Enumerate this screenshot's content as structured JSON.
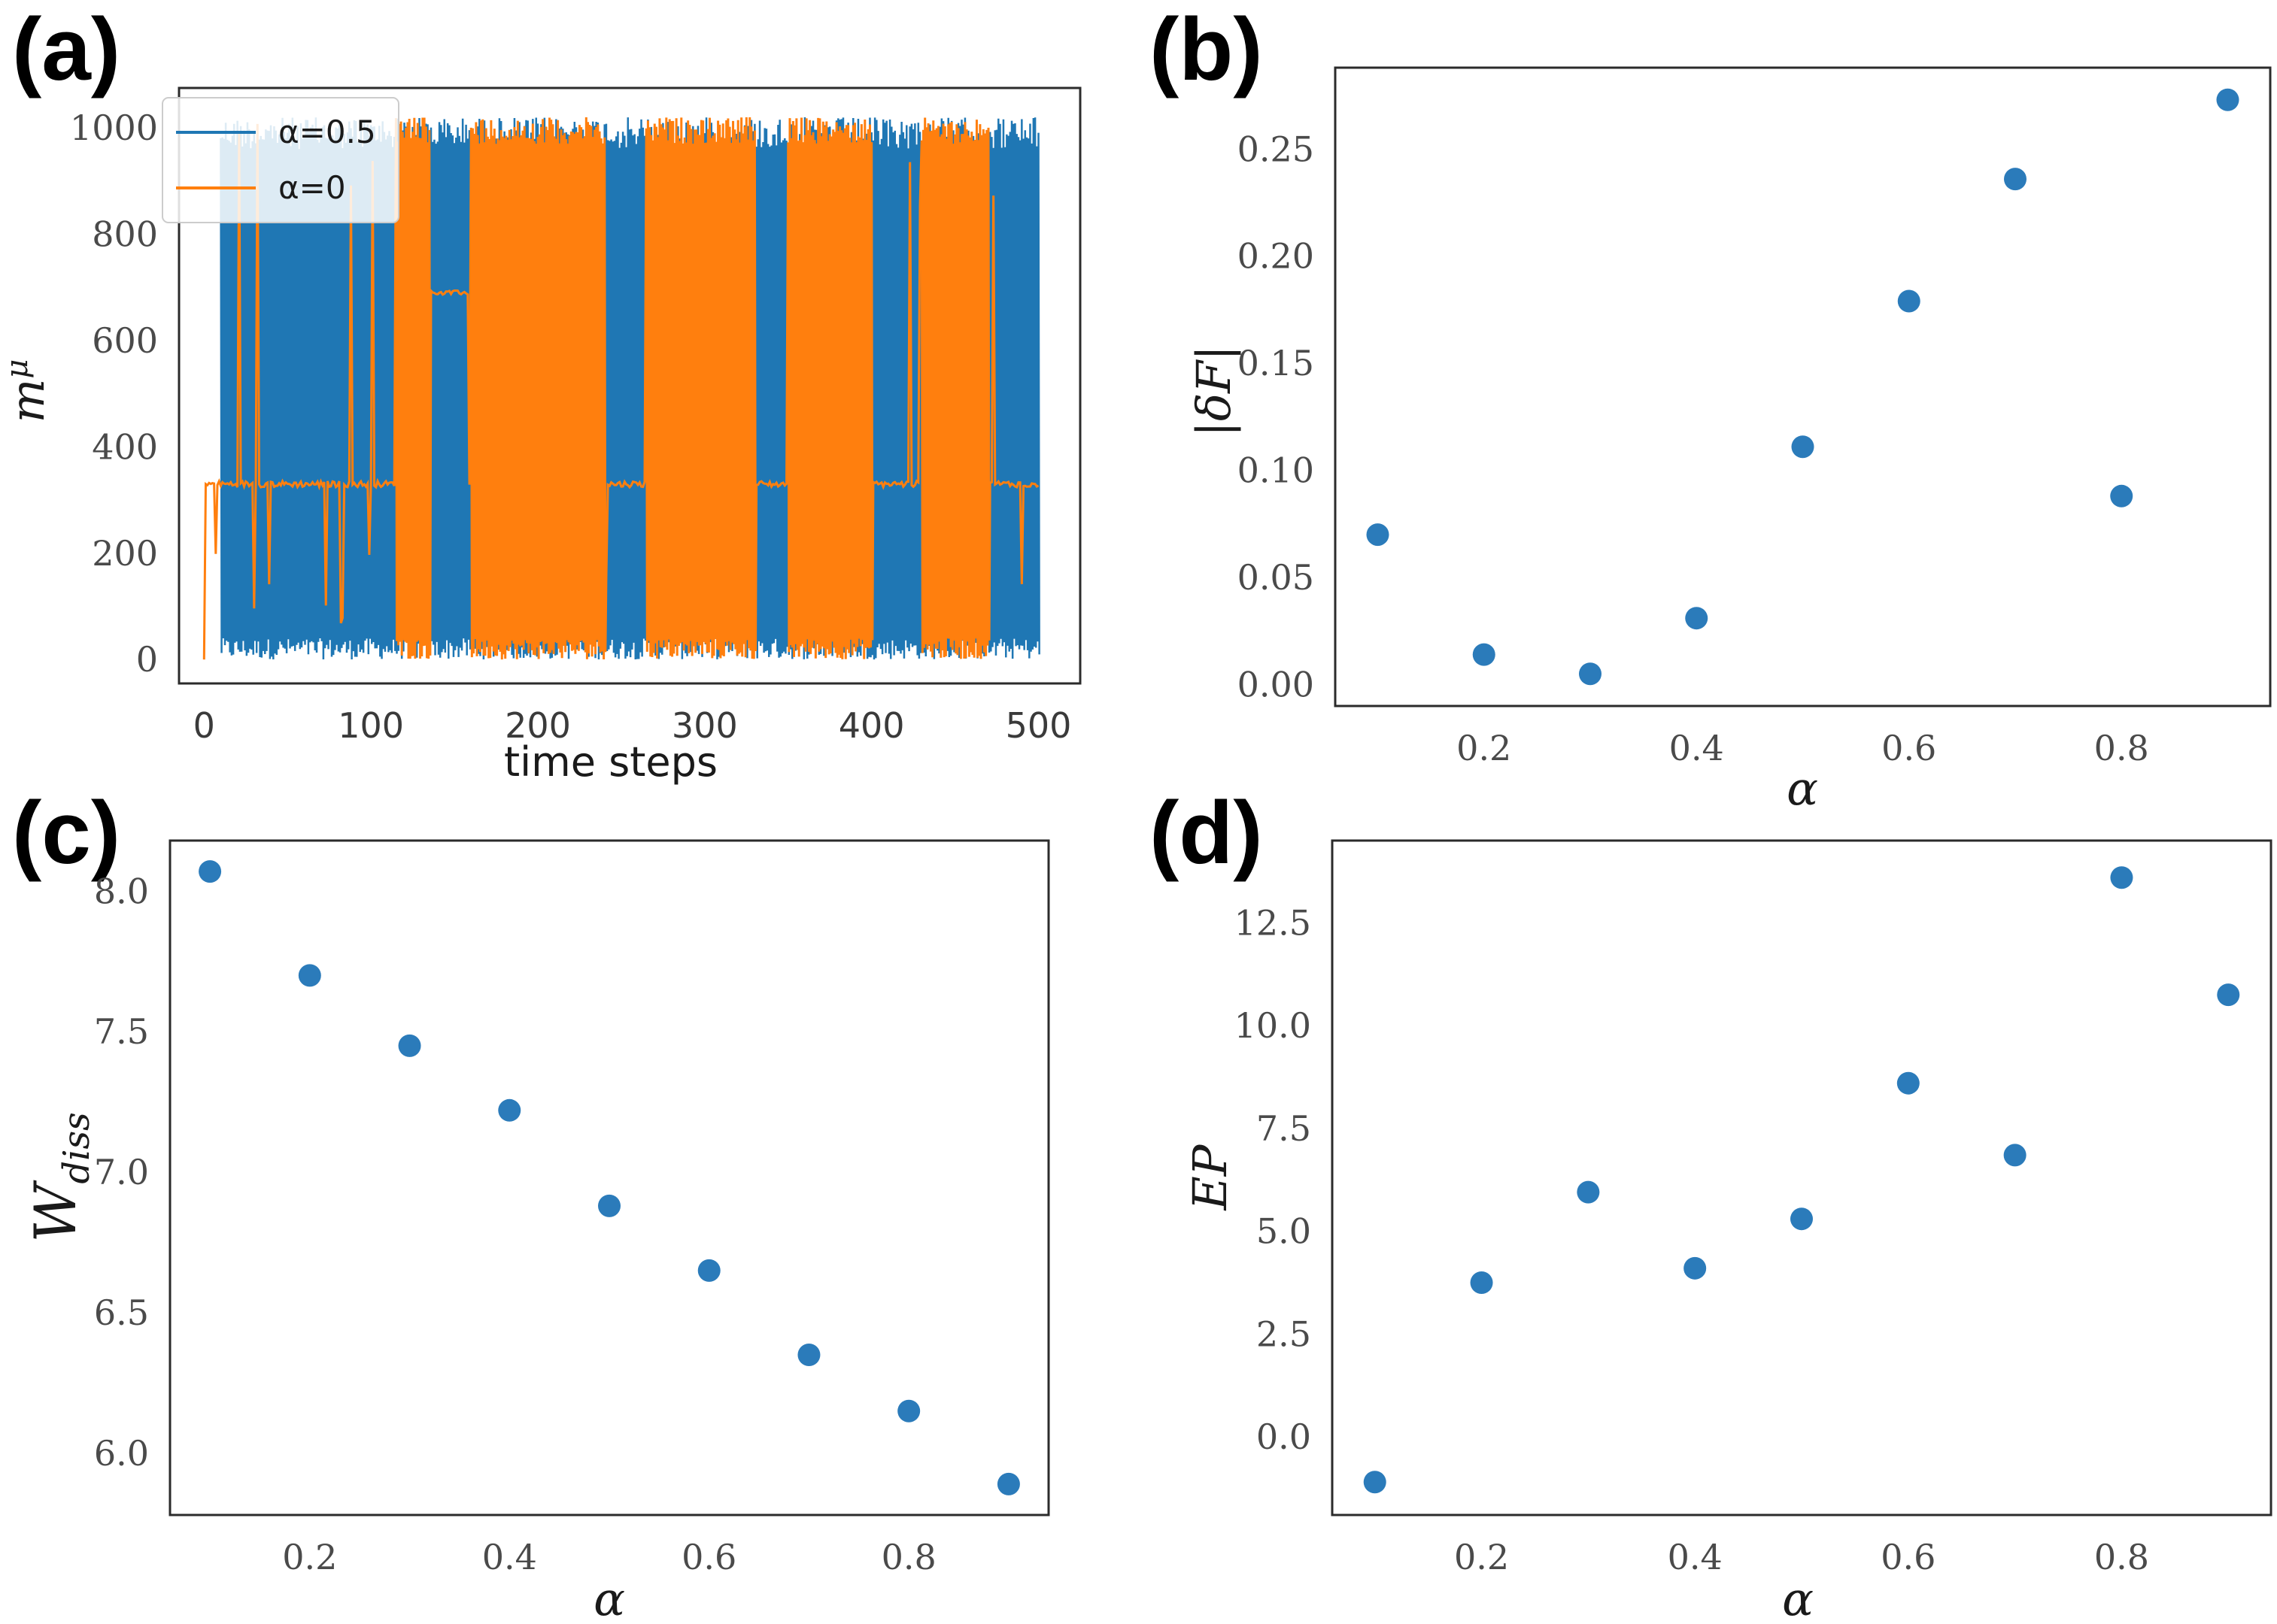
{
  "chart_data": [
    {
      "panel": "(a)",
      "type": "line",
      "xlabel": "time steps",
      "ylabel": "m^μ",
      "ylabel_base": "m",
      "ylabel_sup": "μ",
      "xlim": [
        -15,
        525
      ],
      "ylim": [
        -45,
        1075
      ],
      "xticks": [
        0,
        100,
        200,
        300,
        400,
        500
      ],
      "yticks": [
        0,
        200,
        400,
        600,
        800,
        1000
      ],
      "legend_position": "top-left",
      "grid": false,
      "series": [
        {
          "name": "α=0.5",
          "color": "#1f77b4",
          "behavior": "rapid oscillation between 0 and ~1020 over time steps 0–500",
          "x_range": [
            10,
            500
          ],
          "y_range": [
            0,
            1020
          ]
        },
        {
          "name": "α=0",
          "color": "#ff7f0e",
          "behavior": "plateau near 330 with spikes; dense oscillation bands 0–1020 around steps 115–135, 160–240, 265–330, 350–400, 430–470",
          "plateau": 330,
          "secondary_plateau": 690,
          "x_range": [
            0,
            500
          ],
          "y_range": [
            0,
            1020
          ]
        }
      ]
    },
    {
      "panel": "(b)",
      "type": "scatter",
      "xlabel": "α",
      "ylabel": "|δF|",
      "xlim": [
        0.06,
        0.94
      ],
      "ylim": [
        -0.01,
        0.288
      ],
      "xticks": [
        0.2,
        0.4,
        0.6,
        0.8
      ],
      "yticks": [
        0.0,
        0.05,
        0.1,
        0.15,
        0.2,
        0.25
      ],
      "ytick_labels": [
        "0.00",
        "0.05",
        "0.10",
        "0.15",
        "0.20",
        "0.25"
      ],
      "color": "#2b7bba",
      "x": [
        0.1,
        0.2,
        0.3,
        0.4,
        0.5,
        0.6,
        0.7,
        0.8,
        0.9
      ],
      "y": [
        0.07,
        0.014,
        0.005,
        0.031,
        0.111,
        0.179,
        0.236,
        0.088,
        0.273
      ]
    },
    {
      "panel": "(c)",
      "type": "scatter",
      "xlabel": "α",
      "ylabel": "W_diss",
      "ylabel_base": "W",
      "ylabel_sub": "diss",
      "xlim": [
        0.06,
        0.94
      ],
      "ylim": [
        5.78,
        8.18
      ],
      "xticks": [
        0.2,
        0.4,
        0.6,
        0.8
      ],
      "yticks": [
        6.0,
        6.5,
        7.0,
        7.5,
        8.0
      ],
      "ytick_labels": [
        "6.0",
        "6.5",
        "7.0",
        "7.5",
        "8.0"
      ],
      "color": "#2b7bba",
      "x": [
        0.1,
        0.2,
        0.3,
        0.4,
        0.5,
        0.6,
        0.7,
        0.8,
        0.9
      ],
      "y": [
        8.07,
        7.7,
        7.45,
        7.22,
        6.88,
        6.65,
        6.35,
        6.15,
        5.89
      ]
    },
    {
      "panel": "(d)",
      "type": "scatter",
      "xlabel": "α",
      "ylabel": "EP",
      "xlim": [
        0.06,
        0.94
      ],
      "ylim": [
        -1.9,
        14.5
      ],
      "xticks": [
        0.2,
        0.4,
        0.6,
        0.8
      ],
      "yticks": [
        0.0,
        2.5,
        5.0,
        7.5,
        10.0,
        12.5
      ],
      "ytick_labels": [
        "0.0",
        "2.5",
        "5.0",
        "7.5",
        "10.0",
        "12.5"
      ],
      "color": "#2b7bba",
      "x": [
        0.1,
        0.2,
        0.3,
        0.4,
        0.5,
        0.6,
        0.7,
        0.8,
        0.9
      ],
      "y": [
        -1.1,
        3.75,
        5.95,
        4.1,
        5.3,
        8.6,
        6.85,
        13.6,
        10.75
      ]
    }
  ]
}
